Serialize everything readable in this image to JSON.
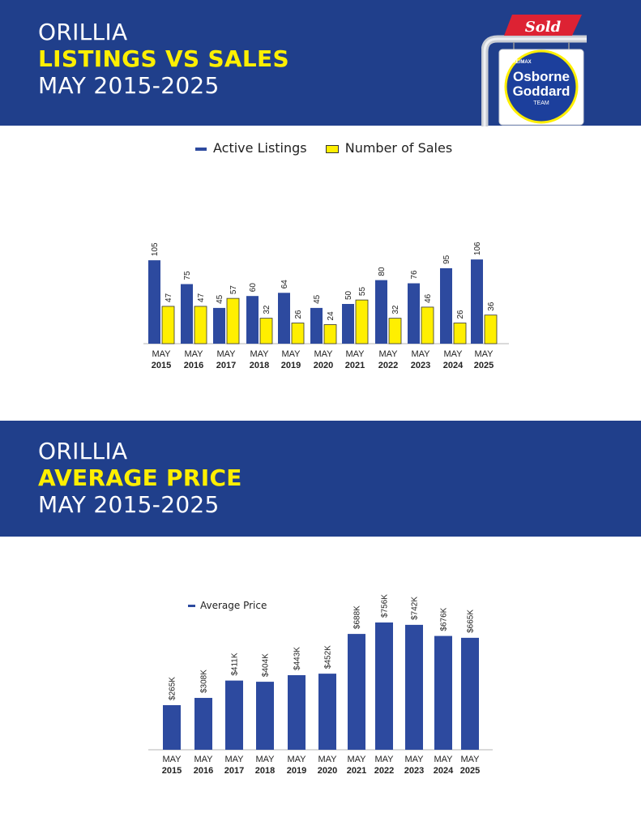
{
  "colors": {
    "banner": "#203f8b",
    "accent": "#ffef00",
    "listings": "#2d4a9f",
    "sales": "#ffef00",
    "price": "#2d4a9f",
    "text": "#222222"
  },
  "header1": {
    "city": "ORILLIA",
    "title": "LISTINGS VS SALES",
    "period": "MAY 2015-2025"
  },
  "header2": {
    "city": "ORILLIA",
    "title": "AVERAGE PRICE",
    "period": "MAY 2015-2025"
  },
  "logo": {
    "sold": "Sold",
    "line1": "Osborne",
    "line2": "Goddard",
    "line3": "TEAM",
    "brand": "RE/MAX"
  },
  "chart_data": [
    {
      "type": "bar",
      "legend_position": "top-center",
      "categories": [
        "MAY|2015",
        "MAY|2016",
        "MAY|2017",
        "MAY|2018",
        "MAY|2019",
        "MAY|2020",
        "MAY|2021",
        "MAY|2022",
        "MAY|2023",
        "MAY|2024",
        "MAY|2025"
      ],
      "series": [
        {
          "name": "Active Listings",
          "values": [
            105,
            75,
            45,
            60,
            64,
            45,
            50,
            80,
            76,
            95,
            106
          ]
        },
        {
          "name": "Number of Sales",
          "values": [
            47,
            47,
            57,
            32,
            26,
            24,
            55,
            32,
            46,
            26,
            36
          ]
        }
      ]
    },
    {
      "type": "bar",
      "legend_position": "top-left",
      "categories": [
        "MAY|2015",
        "MAY|2016",
        "MAY|2017",
        "MAY|2018",
        "MAY|2019",
        "MAY|2020",
        "MAY|2021",
        "MAY|2022",
        "MAY|2023",
        "MAY|2024",
        "MAY|2025"
      ],
      "series": [
        {
          "name": "Average Price",
          "values": [
            265,
            308,
            411,
            404,
            443,
            452,
            688,
            756,
            742,
            676,
            665
          ],
          "labels": [
            "$265K",
            "$308K",
            "$411K",
            "$404K",
            "$443K",
            "$452K",
            "$688K",
            "$756K",
            "$742K",
            "$676K",
            "$665K"
          ]
        }
      ]
    }
  ]
}
